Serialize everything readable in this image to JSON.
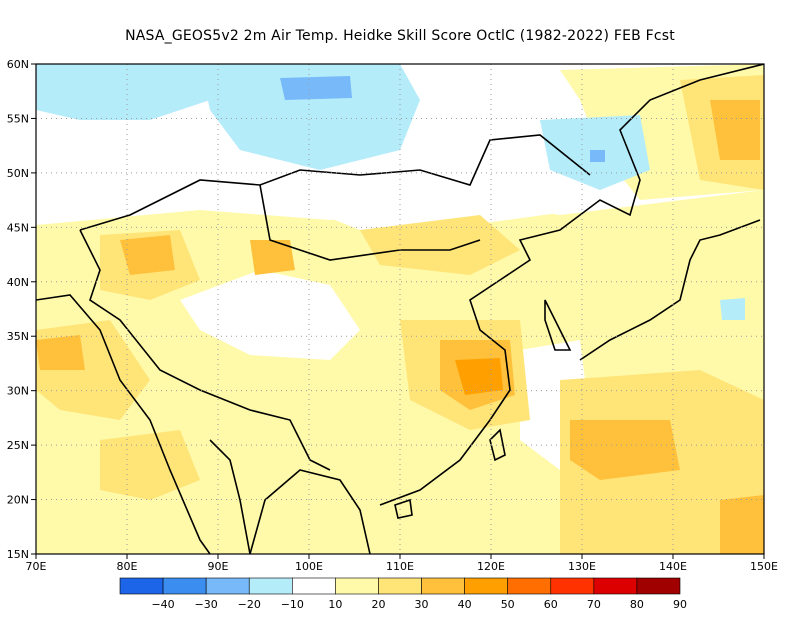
{
  "title": "NASA_GEOS5v2  2m Air Temp. Heidke Skill Score OctlC (1982-2022) FEB Fcst",
  "map": {
    "lon_labels": [
      "70E",
      "80E",
      "90E",
      "100E",
      "110E",
      "120E",
      "130E",
      "140E",
      "150E"
    ],
    "lat_labels": [
      "60N",
      "55N",
      "50N",
      "45N",
      "40N",
      "35N",
      "30N",
      "25N",
      "20N",
      "15N"
    ],
    "lon_range": [
      70,
      150
    ],
    "lat_range": [
      15,
      60
    ],
    "grid": "dotted"
  },
  "colorbar": {
    "colors": [
      "#1c64e8",
      "#3b8ef0",
      "#78b9fa",
      "#b4ecfa",
      "#ffffff",
      "#fffaaa",
      "#ffe478",
      "#ffc13c",
      "#ffa000",
      "#ff6e00",
      "#ff3200",
      "#dc0000",
      "#a00000"
    ],
    "labels": [
      "−40",
      "−30",
      "−20",
      "−10",
      "10",
      "20",
      "30",
      "40",
      "50",
      "60",
      "70",
      "80",
      "90"
    ]
  },
  "palette": {
    "light_yellow": "#fffaaa",
    "yellow": "#ffe478",
    "orange": "#ffc13c",
    "dark_orange": "#ffa000",
    "cyan": "#b4ecfa",
    "light_blue": "#78b9fa"
  }
}
